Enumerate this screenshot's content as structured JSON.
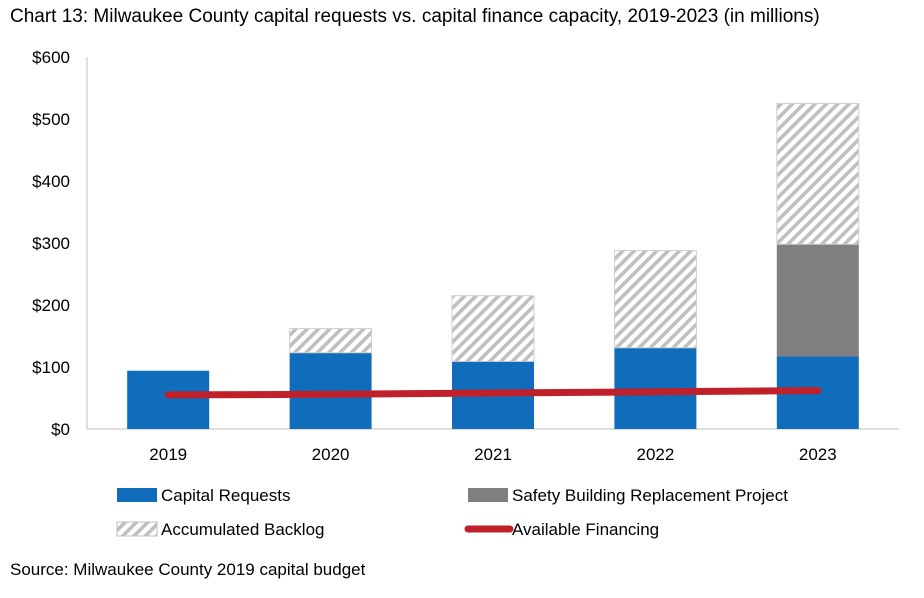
{
  "chart_data": {
    "type": "bar",
    "title": "Chart 13: Milwaukee County capital requests vs. capital finance capacity, 2019-2023 (in millions)",
    "categories": [
      "2019",
      "2020",
      "2021",
      "2022",
      "2023"
    ],
    "ylim": [
      0,
      600
    ],
    "yticks": [
      0,
      100,
      200,
      300,
      400,
      500,
      600
    ],
    "ytick_labels": [
      "$0",
      "$100",
      "$200",
      "$300",
      "$400",
      "$500",
      "$600"
    ],
    "series": [
      {
        "name": "Capital Requests",
        "kind": "bar",
        "color": "#0f6dbb",
        "pattern": "solid",
        "values": [
          94,
          123,
          109,
          131,
          117
        ]
      },
      {
        "name": "Safety Building Replacement Project",
        "kind": "bar",
        "color": "#7f7f7f",
        "pattern": "solid",
        "values": [
          0,
          0,
          0,
          0,
          181
        ]
      },
      {
        "name": "Accumulated Backlog",
        "kind": "bar",
        "color": "#bfbfbf",
        "pattern": "diagonal-hatch",
        "values": [
          0,
          39,
          106,
          157,
          227
        ]
      },
      {
        "name": "Available Financing",
        "kind": "line",
        "color": "#c0202a",
        "values": [
          55,
          56,
          58,
          60,
          62
        ]
      }
    ],
    "legend": [
      "Capital Requests",
      "Safety Building Replacement Project",
      "Accumulated Backlog",
      "Available Financing"
    ],
    "legend_position": "bottom",
    "grid": false
  },
  "source": "Source: Milwaukee County 2019 capital budget"
}
